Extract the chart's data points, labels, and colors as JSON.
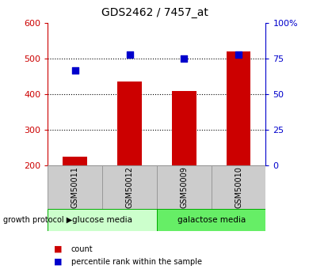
{
  "title": "GDS2462 / 7457_at",
  "samples": [
    "GSM50011",
    "GSM50012",
    "GSM50009",
    "GSM50010"
  ],
  "counts": [
    225,
    435,
    410,
    520
  ],
  "percentiles": [
    67,
    78,
    75,
    78
  ],
  "ylim_left": [
    200,
    600
  ],
  "ylim_right": [
    0,
    100
  ],
  "yticks_left": [
    200,
    300,
    400,
    500,
    600
  ],
  "yticks_right": [
    0,
    25,
    50,
    75,
    100
  ],
  "bar_color": "#cc0000",
  "dot_color": "#0000cc",
  "group_labels": [
    "glucose media",
    "galactose media"
  ],
  "group_colors": [
    "#ccffcc",
    "#66ee66"
  ],
  "growth_label": "growth protocol",
  "legend_count": "count",
  "legend_percentile": "percentile rank within the sample",
  "left_axis_color": "#cc0000",
  "right_axis_color": "#0000cc",
  "fig_width": 3.9,
  "fig_height": 3.45
}
